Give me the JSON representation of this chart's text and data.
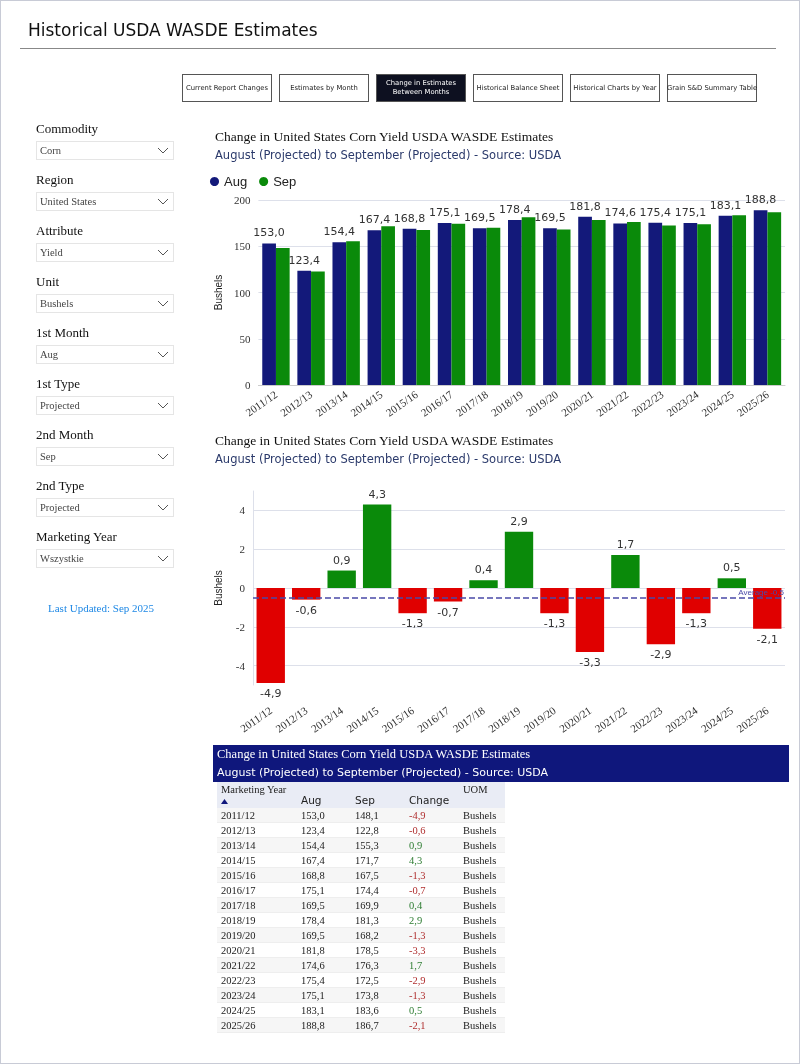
{
  "chart_data": [
    {
      "type": "other",
      "title": "Historical USDA WASDE Estimates",
      "annotations": [
        "Current Report Changes",
        "Estimates by Month",
        "Change in Estimates Between Months",
        "Historical Balance Sheet",
        "Historical Charts by Year",
        "Grain S&D Summary Table"
      ]
    },
    {
      "type": "other",
      "annotations": [
        "Commodity",
        "Corn",
        "Region",
        "United States",
        "Attribute",
        "Yield",
        "Unit",
        "Bushels",
        "1st Month",
        "Aug",
        "1st Type",
        "Projected",
        "2nd Month",
        "Sep",
        "2nd Type",
        "Projected",
        "Marketing Year",
        "Wszystkie",
        "Last Updated: Sep 2025"
      ]
    },
    {
      "type": "bar",
      "title": "Change in United States Corn Yield USDA WASDE Estimates",
      "subtitle": "August (Projected) to September (Projected) - Source: USDA",
      "ylabel": "Bushels",
      "categories": [
        "2011/12",
        "2012/13",
        "2013/14",
        "2014/15",
        "2015/16",
        "2016/17",
        "2017/18",
        "2018/19",
        "2019/20",
        "2020/21",
        "2021/22",
        "2022/23",
        "2023/24",
        "2024/25",
        "2025/26"
      ],
      "series": [
        {
          "name": "Aug",
          "color": "#13197a",
          "values": [
            153.0,
            123.4,
            154.4,
            167.4,
            168.8,
            175.1,
            169.5,
            178.4,
            169.5,
            181.8,
            174.6,
            175.4,
            175.1,
            183.1,
            188.8
          ],
          "value_labels": [
            "153,0",
            "123,4",
            "154,4",
            "167,4",
            "168,8",
            "175,1",
            "169,5",
            "178,4",
            "169,5",
            "181,8",
            "174,6",
            "175,4",
            "175,1",
            "183,1",
            "188,8"
          ]
        },
        {
          "name": "Sep",
          "color": "#0a8a0a",
          "values": [
            148.1,
            122.8,
            155.3,
            171.7,
            167.5,
            174.4,
            169.9,
            181.3,
            168.2,
            178.5,
            176.3,
            172.5,
            173.8,
            183.6,
            186.7
          ]
        }
      ],
      "ylim": [
        0,
        200
      ],
      "yticks": [
        0,
        50,
        100,
        150,
        200
      ],
      "grid": "y",
      "legend": "top left"
    },
    {
      "type": "bar",
      "title": "Change in United States Corn Yield USDA WASDE Estimates",
      "subtitle": "August (Projected) to September (Projected) - Source: USDA",
      "ylabel": "Bushels",
      "categories": [
        "2011/12",
        "2012/13",
        "2013/14",
        "2014/15",
        "2015/16",
        "2016/17",
        "2017/18",
        "2018/19",
        "2019/20",
        "2020/21",
        "2021/22",
        "2022/23",
        "2023/24",
        "2024/25",
        "2025/26"
      ],
      "values": [
        -4.9,
        -0.6,
        0.9,
        4.3,
        -1.3,
        -0.7,
        0.4,
        2.9,
        -1.3,
        -3.3,
        1.7,
        -2.9,
        -1.3,
        0.5,
        -2.1
      ],
      "value_labels": [
        "-4,9",
        "-0,6",
        "0,9",
        "4,3",
        "-1,3",
        "-0,7",
        "0,4",
        "2,9",
        "-1,3",
        "-3,3",
        "1,7",
        "-2,9",
        "-1,3",
        "0,5",
        "-2,1"
      ],
      "colors": [
        "#e00000",
        "#e00000",
        "#0a8a0a",
        "#0a8a0a",
        "#e00000",
        "#e00000",
        "#0a8a0a",
        "#0a8a0a",
        "#e00000",
        "#e00000",
        "#0a8a0a",
        "#e00000",
        "#e00000",
        "#0a8a0a",
        "#e00000"
      ],
      "ref_lines": [
        {
          "axis": "y",
          "value": -0.5,
          "label": "Average -0,5",
          "color": "#4a4aa8",
          "line_style": "dashed"
        }
      ],
      "ylim": [
        -5,
        5
      ],
      "yticks": [
        -4,
        -2,
        0,
        2,
        4
      ],
      "grid": "y"
    },
    {
      "type": "other",
      "title": "Change in United States Corn Yield USDA WASDE Estimates",
      "subtitle": "August (Projected) to September (Projected) - Source: USDA",
      "xlabel": "Marketing Year",
      "categories": [
        "2011/12",
        "2012/13",
        "2013/14",
        "2014/15",
        "2015/16",
        "2016/17",
        "2017/18",
        "2018/19",
        "2019/20",
        "2020/21",
        "2021/22",
        "2022/23",
        "2023/24",
        "2024/25",
        "2025/26"
      ],
      "series": [
        {
          "name": "Aug",
          "values": [
            153.0,
            123.4,
            154.4,
            167.4,
            168.8,
            175.1,
            169.5,
            178.4,
            169.5,
            181.8,
            174.6,
            175.4,
            175.1,
            183.1,
            188.8
          ],
          "value_labels": [
            "153,0",
            "123,4",
            "154,4",
            "167,4",
            "168,8",
            "175,1",
            "169,5",
            "178,4",
            "169,5",
            "181,8",
            "174,6",
            "175,4",
            "175,1",
            "183,1",
            "188,8"
          ]
        },
        {
          "name": "Sep",
          "values": [
            148.1,
            122.8,
            155.3,
            171.7,
            167.5,
            174.4,
            169.9,
            181.3,
            168.2,
            178.5,
            176.3,
            172.5,
            173.8,
            183.6,
            186.7
          ],
          "value_labels": [
            "148,1",
            "122,8",
            "155,3",
            "171,7",
            "167,5",
            "174,4",
            "169,9",
            "181,3",
            "168,2",
            "178,5",
            "176,3",
            "172,5",
            "173,8",
            "183,6",
            "186,7"
          ]
        },
        {
          "name": "Change",
          "values": [
            -4.9,
            -0.6,
            0.9,
            4.3,
            -1.3,
            -0.7,
            0.4,
            2.9,
            -1.3,
            -3.3,
            1.7,
            -2.9,
            -1.3,
            0.5,
            -2.1
          ],
          "value_labels": [
            "-4,9",
            "-0,6",
            "0,9",
            "4,3",
            "-1,3",
            "-0,7",
            "0,4",
            "2,9",
            "-1,3",
            "-3,3",
            "1,7",
            "-2,9",
            "-1,3",
            "0,5",
            "-2,1"
          ],
          "colors": [
            "#b03030",
            "#b03030",
            "#2e7d32",
            "#2e7d32",
            "#b03030",
            "#b03030",
            "#2e7d32",
            "#2e7d32",
            "#b03030",
            "#b03030",
            "#2e7d32",
            "#b03030",
            "#b03030",
            "#2e7d32",
            "#b03030"
          ]
        }
      ],
      "annotations": [
        "UOM",
        "Bushels"
      ]
    }
  ]
}
